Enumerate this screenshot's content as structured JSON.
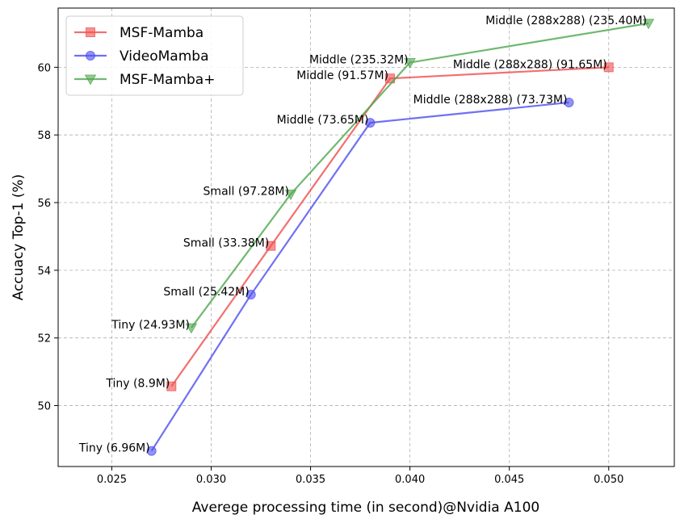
{
  "chart_data": {
    "type": "line",
    "xlabel": "Averege processing time (in second)@Nvidia A100",
    "ylabel": "Accuacy Top-1 (%)",
    "xlim": [
      0.0223,
      0.0533
    ],
    "ylim": [
      48.2,
      61.75
    ],
    "xticks": [
      0.025,
      0.03,
      0.035,
      0.04,
      0.045,
      0.05
    ],
    "xtick_labels": [
      "0.025",
      "0.030",
      "0.035",
      "0.040",
      "0.045",
      "0.050"
    ],
    "yticks": [
      50,
      52,
      54,
      56,
      58,
      60
    ],
    "ytick_labels": [
      "50",
      "52",
      "54",
      "56",
      "58",
      "60"
    ],
    "grid": true,
    "legend_position": "top-left",
    "series": [
      {
        "name": "MSF-Mamba",
        "color": "#f05050",
        "marker": "square",
        "x": [
          0.028,
          0.033,
          0.039,
          0.05
        ],
        "y": [
          50.57,
          54.72,
          59.67,
          60.0
        ]
      },
      {
        "name": "VideoMamba",
        "color": "#5050f0",
        "marker": "circle",
        "x": [
          0.027,
          0.032,
          0.038,
          0.048
        ],
        "y": [
          48.66,
          53.28,
          58.36,
          58.96
        ]
      },
      {
        "name": "MSF-Mamba+",
        "color": "#50a850",
        "marker": "triangle-down",
        "x": [
          0.029,
          0.034,
          0.04,
          0.052
        ],
        "y": [
          52.3,
          56.25,
          60.14,
          61.3
        ]
      }
    ],
    "annotations": [
      {
        "text": "Tiny (6.96M)",
        "x": 0.027,
        "y": 48.66
      },
      {
        "text": "Tiny (8.9M)",
        "x": 0.028,
        "y": 50.57
      },
      {
        "text": "Tiny (24.93M)",
        "x": 0.029,
        "y": 52.3
      },
      {
        "text": "Small (25.42M)",
        "x": 0.032,
        "y": 53.28
      },
      {
        "text": "Small (33.38M)",
        "x": 0.033,
        "y": 54.72
      },
      {
        "text": "Small (97.28M)",
        "x": 0.034,
        "y": 56.25
      },
      {
        "text": "Middle (73.65M)",
        "x": 0.038,
        "y": 58.36
      },
      {
        "text": "Middle (91.57M)",
        "x": 0.039,
        "y": 59.67
      },
      {
        "text": "Middle (235.32M)",
        "x": 0.04,
        "y": 60.14
      },
      {
        "text": "Middle (288x288) (73.73M)",
        "x": 0.048,
        "y": 58.96
      },
      {
        "text": "Middle (288x288) (91.65M)",
        "x": 0.05,
        "y": 60.0
      },
      {
        "text": "Middle (288x288) (235.40M)",
        "x": 0.052,
        "y": 61.3
      }
    ]
  }
}
